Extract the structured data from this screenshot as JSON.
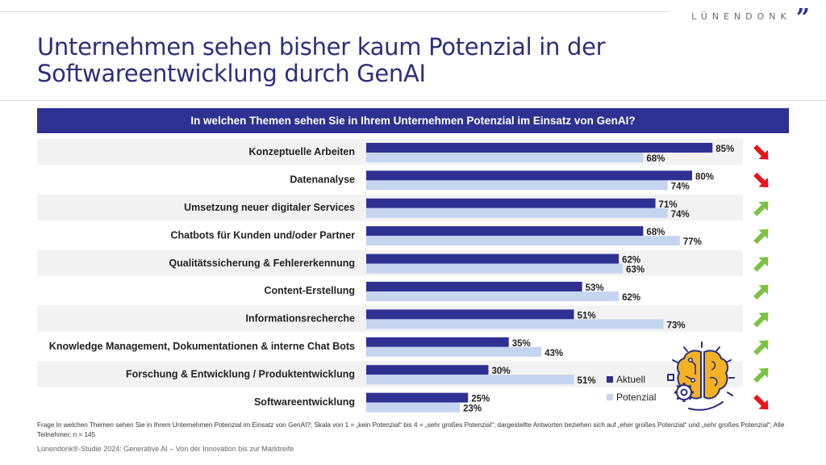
{
  "header": {
    "brand": "LÜNENDONK",
    "brand_mark": "”",
    "title": "Unternehmen sehen bisher kaum Potenzial in der Softwareentwicklung durch GenAI"
  },
  "colors": {
    "aktuell": "#2e3192",
    "potenzial": "#c5d5f0",
    "row_band": "#f2f2f2",
    "trend_up": "#7dc242",
    "trend_down": "#e8141b",
    "brand_blue": "#2e3192"
  },
  "chart_data": {
    "type": "bar",
    "orientation": "horizontal",
    "title": "In welchen Themen sehen Sie in Ihrem Unternehmen Potenzial im Einsatz von GenAI?",
    "categories": [
      "Konzeptuelle Arbeiten",
      "Datenanalyse",
      "Umsetzung neuer digitaler Services",
      "Chatbots für Kunden und/oder Partner",
      "Qualitätssicherung & Fehlererkennung",
      "Content-Erstellung",
      "Informationsrecherche",
      "Knowledge Management, Dokumentationen & interne Chat Bots",
      "Forschung & Entwicklung / Produktentwicklung",
      "Softwareentwicklung"
    ],
    "series": [
      {
        "name": "Aktuell",
        "values": [
          85,
          80,
          71,
          68,
          62,
          53,
          51,
          35,
          30,
          25
        ]
      },
      {
        "name": "Potenzial",
        "values": [
          68,
          74,
          74,
          77,
          63,
          62,
          73,
          43,
          51,
          23
        ]
      }
    ],
    "value_suffix": "%",
    "trend": [
      "down",
      "down",
      "up",
      "up",
      "up",
      "up",
      "up",
      "up",
      "up",
      "down"
    ],
    "xlim": [
      0,
      100
    ],
    "grid": false,
    "legend": {
      "entries": [
        "Aktuell",
        "Potenzial"
      ],
      "position": "bottom-right"
    }
  },
  "footer": {
    "footnote": "Frage In welchen Themen sehen Sie in Ihrem Unternehmen Potenzial im Einsatz von GenAI?; Skala von 1 = „kein Potenzial“ bis 4 = „sehr großes Potenzial“; dargestellte Antworten beziehen sich auf „eher großes Potenzial“ und „sehr großes Potenzial“; Alle Teilnehmer; n = 145",
    "source": "Lünendonk®-Studie 2024: Generative AI – Von der Innovation bis zur Marktreife"
  },
  "decoration": {
    "illustration": "brain-gear-icon"
  }
}
